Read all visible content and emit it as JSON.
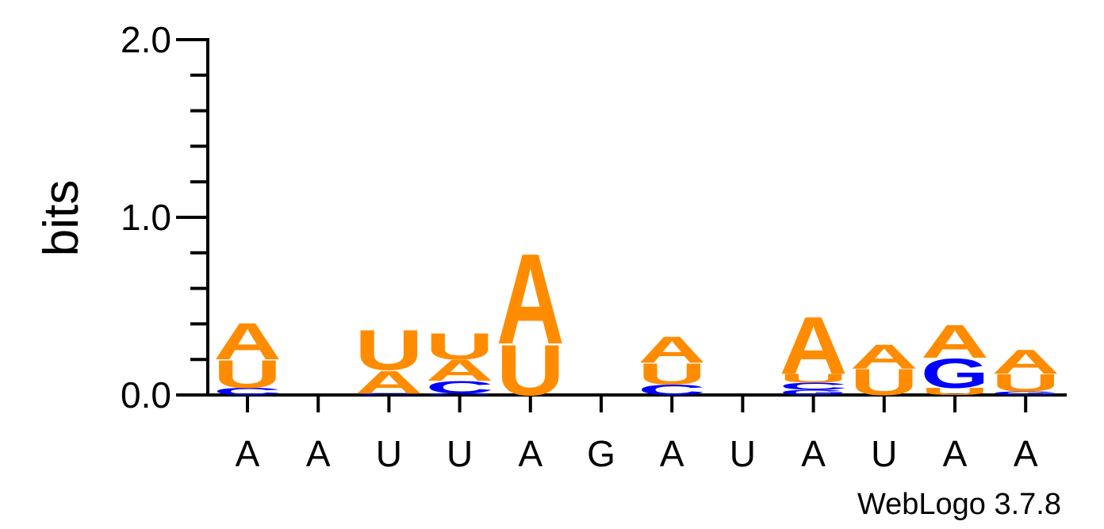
{
  "chart_data": {
    "type": "sequence-logo",
    "ylabel": "bits",
    "ylim": [
      0,
      2
    ],
    "y_tick_labels": [
      "0.0",
      "1.0",
      "2.0"
    ],
    "positions": [
      "A",
      "A",
      "U",
      "U",
      "A",
      "G",
      "A",
      "U",
      "A",
      "U",
      "A",
      "A"
    ],
    "colors": {
      "A": "#ff8c00",
      "U": "#ff8c00",
      "G": "#0000ff",
      "C": "#0000ff"
    },
    "stacks": [
      [
        {
          "letter": "C",
          "bits": 0.04
        },
        {
          "letter": "U",
          "bits": 0.16
        },
        {
          "letter": "A",
          "bits": 0.21
        }
      ],
      [],
      [
        {
          "letter": "C",
          "bits": 0.01
        },
        {
          "letter": "A",
          "bits": 0.13
        },
        {
          "letter": "U",
          "bits": 0.23
        }
      ],
      [
        {
          "letter": "G",
          "bits": 0.01
        },
        {
          "letter": "C",
          "bits": 0.07
        },
        {
          "letter": "A",
          "bits": 0.12
        },
        {
          "letter": "U",
          "bits": 0.15
        }
      ],
      [
        {
          "letter": "U",
          "bits": 0.29
        },
        {
          "letter": "A",
          "bits": 0.52
        }
      ],
      [],
      [
        {
          "letter": "C",
          "bits": 0.06
        },
        {
          "letter": "U",
          "bits": 0.12
        },
        {
          "letter": "A",
          "bits": 0.15
        }
      ],
      [],
      [
        {
          "letter": "G",
          "bits": 0.03
        },
        {
          "letter": "C",
          "bits": 0.04
        },
        {
          "letter": "U",
          "bits": 0.05
        },
        {
          "letter": "A",
          "bits": 0.33
        }
      ],
      [
        {
          "letter": "U",
          "bits": 0.15
        },
        {
          "letter": "A",
          "bits": 0.14
        }
      ],
      [
        {
          "letter": "U",
          "bits": 0.04
        },
        {
          "letter": "G",
          "bits": 0.17
        },
        {
          "letter": "A",
          "bits": 0.19
        }
      ],
      [
        {
          "letter": "G",
          "bits": 0.02
        },
        {
          "letter": "U",
          "bits": 0.1
        },
        {
          "letter": "A",
          "bits": 0.14
        }
      ]
    ]
  },
  "credit": "WebLogo 3.7.8"
}
